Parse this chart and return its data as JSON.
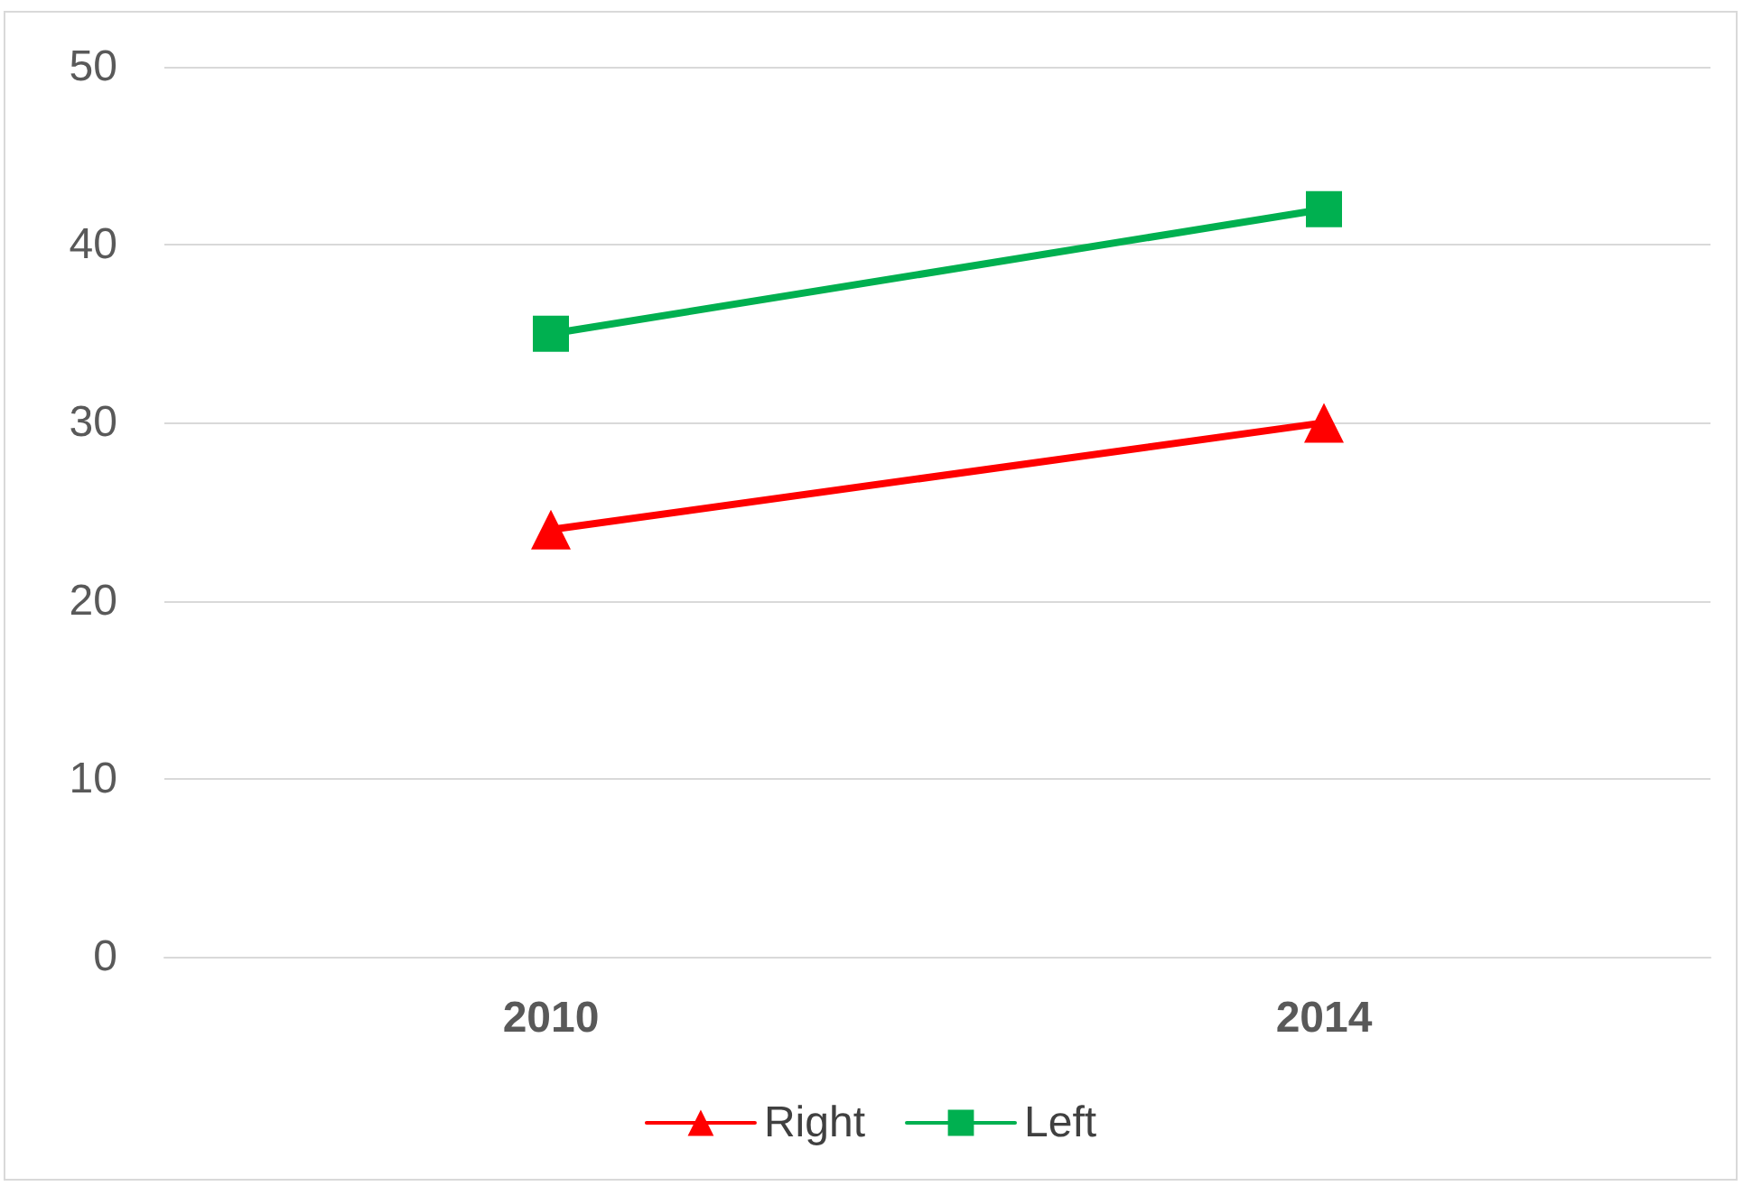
{
  "chart_data": {
    "type": "line",
    "categories": [
      "2010",
      "2014"
    ],
    "series": [
      {
        "name": "Right",
        "color": "#ff0000",
        "marker": "triangle",
        "values": [
          24,
          30
        ]
      },
      {
        "name": "Left",
        "color": "#00b050",
        "marker": "square",
        "values": [
          35,
          42
        ]
      }
    ],
    "ylim": [
      0,
      50
    ],
    "yticks": [
      0,
      10,
      20,
      30,
      40,
      50
    ],
    "grid": "y",
    "legend": "bottom"
  }
}
